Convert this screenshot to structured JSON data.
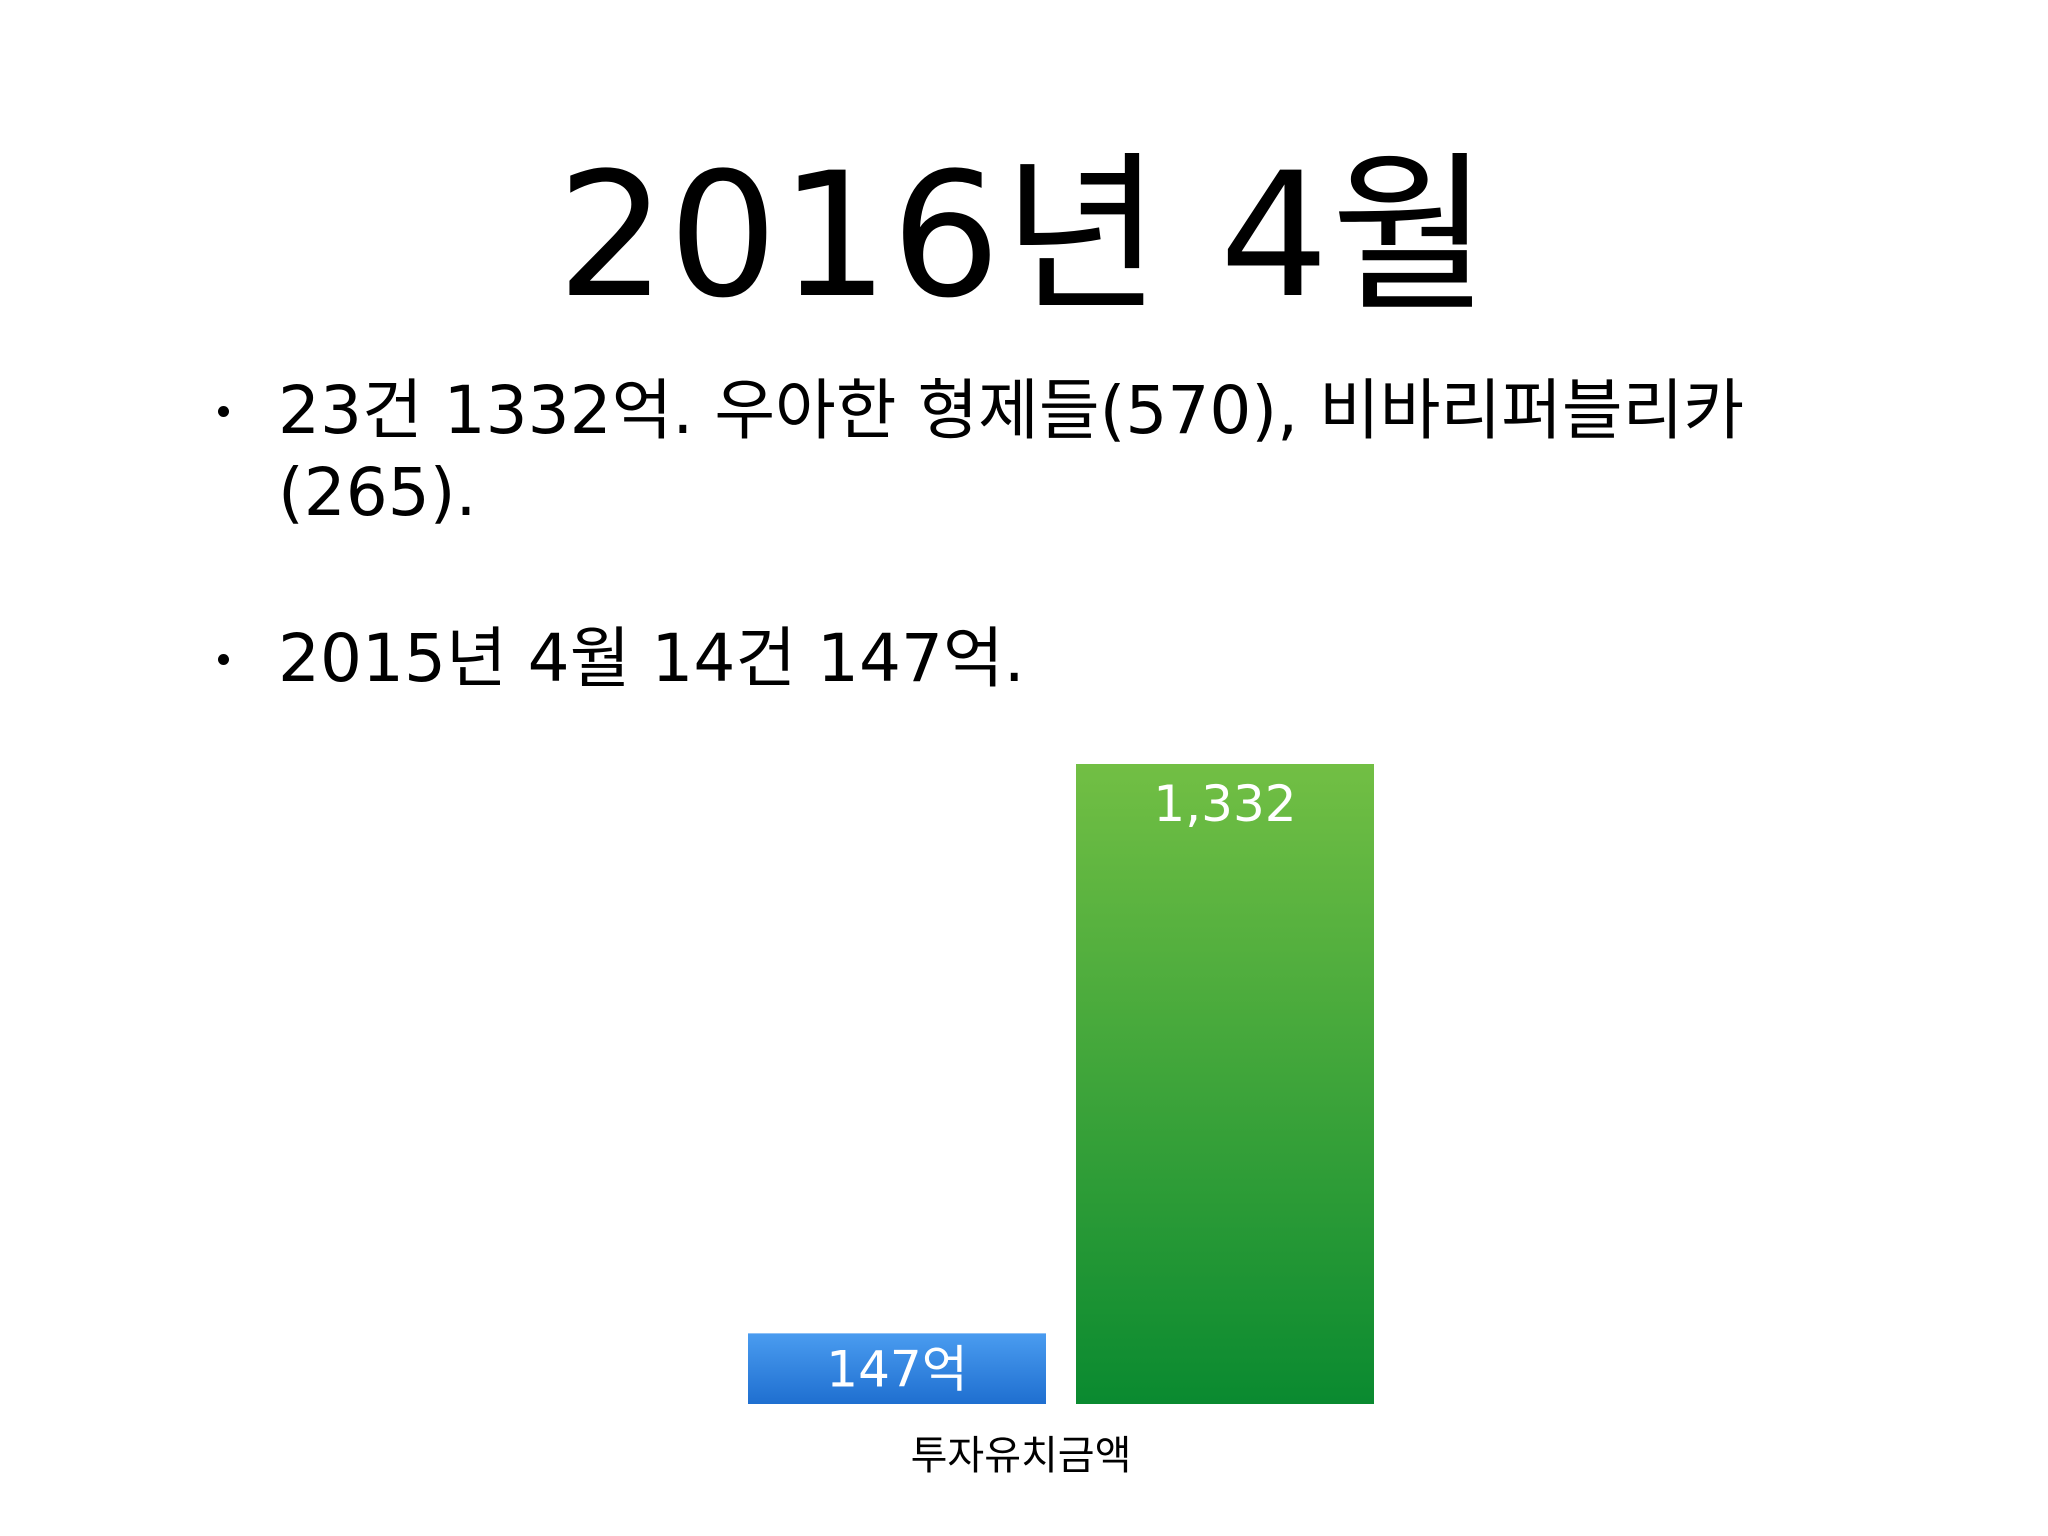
{
  "slide": {
    "title": "2016년 4월",
    "bullets": [
      "23건 1332억. 우아한 형제들(570), 비바리퍼블리카 (265).",
      "2015년 4월 14건 147억."
    ]
  },
  "chart_data": {
    "type": "bar",
    "xlabel": "투자유치금액",
    "ylim": [
      0,
      1332
    ],
    "grid": false,
    "series": [
      {
        "values": [
          147
        ],
        "label": "147억",
        "color": "#2f86e3"
      },
      {
        "values": [
          1332
        ],
        "label": "1,332",
        "color": "#3fa43c"
      }
    ]
  }
}
